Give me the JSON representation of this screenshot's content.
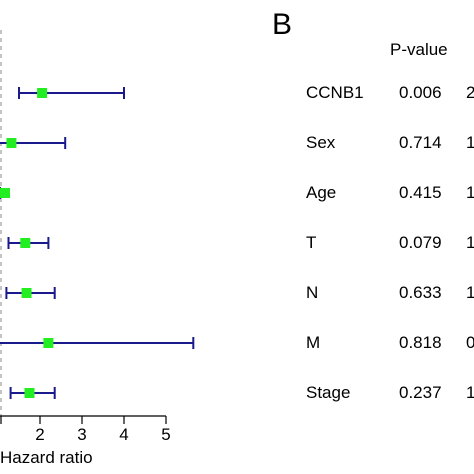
{
  "chart_data": {
    "type": "forest",
    "panel_b_label": "B",
    "pvalue_header": "P-value",
    "xlabel": "Hazard ratio",
    "xlim": [
      1.5,
      5.6
    ],
    "x_ticks": [
      "2",
      "3",
      "4",
      "5"
    ],
    "x_tick_values": [
      2,
      3,
      4,
      5
    ],
    "reference_line_x": 1,
    "colors": {
      "ci": "#1a1a8c",
      "point": "#22ee22",
      "reference": "#888888"
    },
    "rows": [
      {
        "label": "CCNB1",
        "p": "0.006",
        "hr_extra": "2",
        "hr": 2.05,
        "lower": 1.5,
        "upper": 4.0
      },
      {
        "label": "Sex",
        "p": "0.714",
        "hr_extra": "1",
        "hr": 1.32,
        "lower": 1.0,
        "upper": 2.6
      },
      {
        "label": "Age",
        "p": "0.415",
        "hr_extra": "1",
        "hr": 1.0,
        "lower": 0.99,
        "upper": 1.02
      },
      {
        "label": "T",
        "p": "0.079",
        "hr_extra": "1",
        "hr": 1.65,
        "lower": 1.25,
        "upper": 2.2
      },
      {
        "label": "N",
        "p": "0.633",
        "hr_extra": "1",
        "hr": 1.68,
        "lower": 1.2,
        "upper": 2.35
      },
      {
        "label": "M",
        "p": "0.818",
        "hr_extra": "0",
        "hr": 2.2,
        "lower": 0.5,
        "upper": 5.65
      },
      {
        "label": "Stage",
        "p": "0.237",
        "hr_extra": "1",
        "hr": 1.75,
        "lower": 1.3,
        "upper": 2.35
      }
    ]
  }
}
